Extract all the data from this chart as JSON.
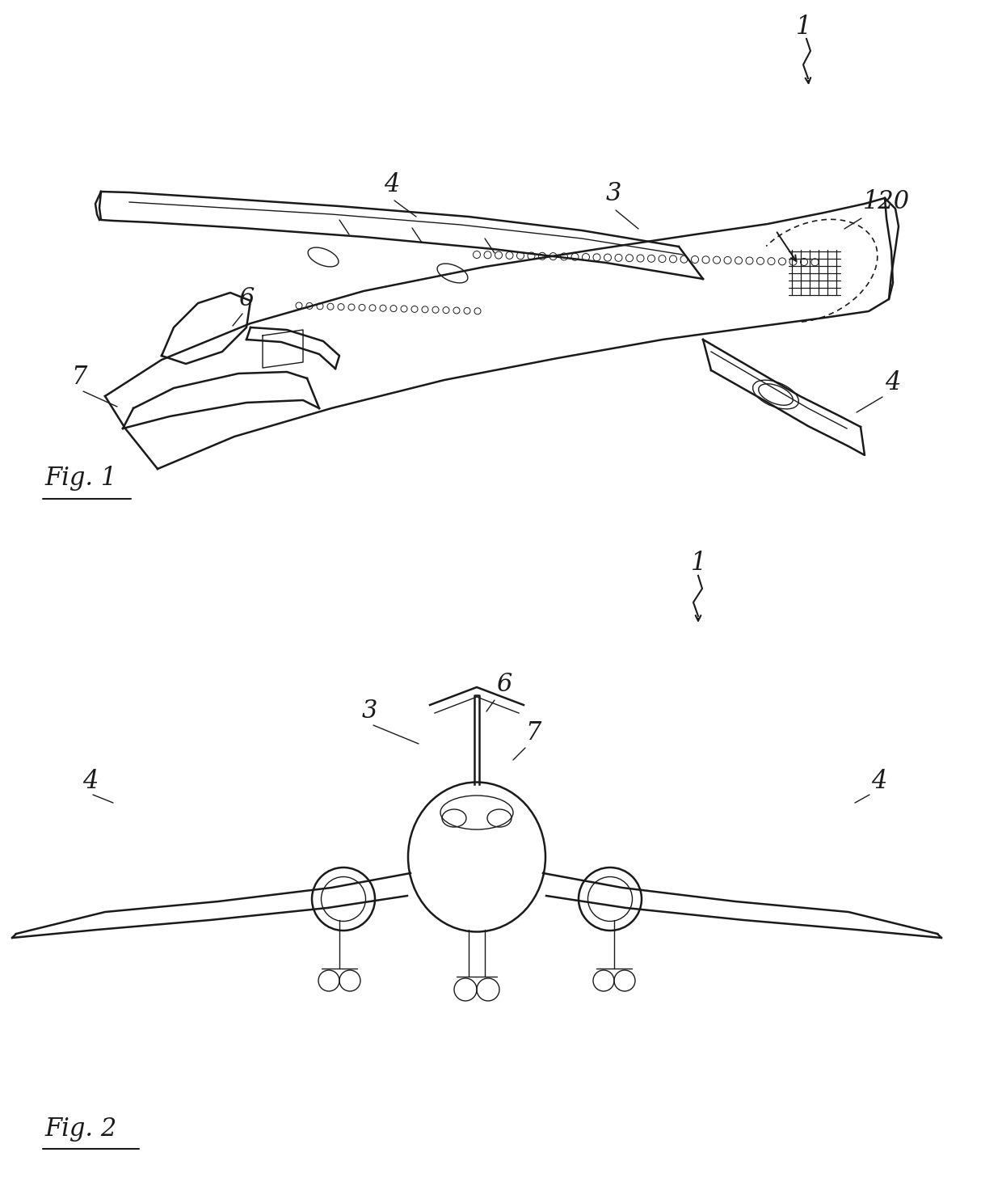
{
  "bg_color": "#ffffff",
  "line_color": "#1a1a1a",
  "fig1_label": "Fig. 1",
  "fig2_label": "Fig. 2",
  "font_size_refs": 22,
  "font_size_labels": 22,
  "lw_main": 1.8,
  "lw_thin": 1.0
}
